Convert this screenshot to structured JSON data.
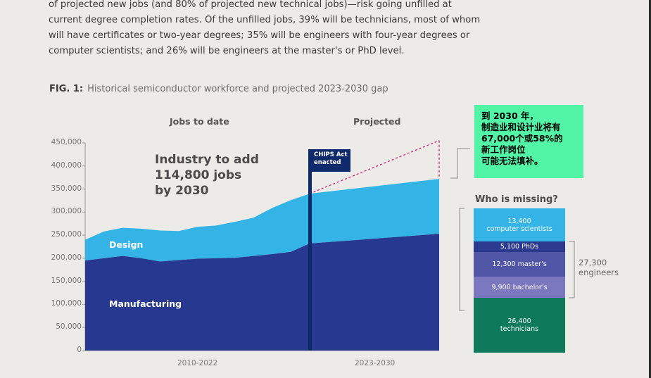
{
  "body_text": {
    "lines": [
      "of projected new jobs (and 80% of projected new technical jobs)—risk going unfilled at",
      "current degree completion rates. Of the unfilled jobs, 39% will be technicians, most of whom",
      "will have certificates or two-year degrees; 35% will be engineers with four-year degrees or",
      "computer scientists; and 26% will be engineers at the master's or PhD level."
    ]
  },
  "figure": {
    "label": "FIG. 1:",
    "title": "Historical semiconductor workforce and projected 2023-2030 gap"
  },
  "chart_data": {
    "type": "area",
    "section_headers": [
      "Jobs to date",
      "Projected"
    ],
    "x_labels": [
      "2010-2022",
      "2023-2030"
    ],
    "y_ticks": [
      450000,
      400000,
      350000,
      300000,
      250000,
      200000,
      150000,
      100000,
      50000,
      0
    ],
    "y_tick_labels": [
      "450,000",
      "400,000",
      "350,000",
      "300,000",
      "250,000",
      "200,000",
      "150,000",
      "100,000",
      "50,000",
      "0"
    ],
    "ylim": [
      0,
      450000
    ],
    "historical_years": [
      2010,
      2011,
      2012,
      2013,
      2014,
      2015,
      2016,
      2017,
      2018,
      2019,
      2020,
      2021,
      2022
    ],
    "series": [
      {
        "name": "Manufacturing",
        "color": "#26388f",
        "historical": [
          195000,
          200000,
          205000,
          200000,
          193000,
          196000,
          199000,
          200000,
          201000,
          205000,
          209000,
          214000,
          232000
        ],
        "projected": [
          232000,
          253000
        ]
      },
      {
        "name": "Design",
        "color": "#34b4e6",
        "historical": [
          45000,
          58000,
          61000,
          64000,
          67000,
          63000,
          69000,
          71000,
          78000,
          83000,
          100000,
          112000,
          108000
        ],
        "projected": [
          108000,
          119000
        ]
      }
    ],
    "projected_total_top": [
      340000,
      372000
    ],
    "target_total_2030": 455000,
    "chips_act_label": [
      "CHIPS Act",
      "enacted"
    ],
    "annotation": [
      "Industry to add",
      "114,800 jobs",
      "by 2030"
    ]
  },
  "callout": {
    "lines": [
      "到 2030 年，",
      "制造业和设计业将有",
      "67,000个或58%的",
      "新工作岗位",
      "可能无法填补。"
    ],
    "bg_color": "#52f4a5"
  },
  "who_is_missing": {
    "title": "Who is missing?",
    "segments": [
      {
        "value": 13400,
        "lines": [
          "13,400",
          "computer scientists"
        ],
        "color": "#34b4e6"
      },
      {
        "value": 5100,
        "lines": [
          "5,100 PhDs"
        ],
        "color": "#2b3a8e"
      },
      {
        "value": 12300,
        "lines": [
          "12,300 master's"
        ],
        "color": "#5155a6"
      },
      {
        "value": 9900,
        "lines": [
          "9,900 bachelor's"
        ],
        "color": "#7b78bf"
      },
      {
        "value": 26400,
        "lines": [
          "26,400",
          "technicians"
        ],
        "color": "#0f7a5b"
      }
    ],
    "engineers_total": [
      "27,300",
      "engineers"
    ]
  }
}
